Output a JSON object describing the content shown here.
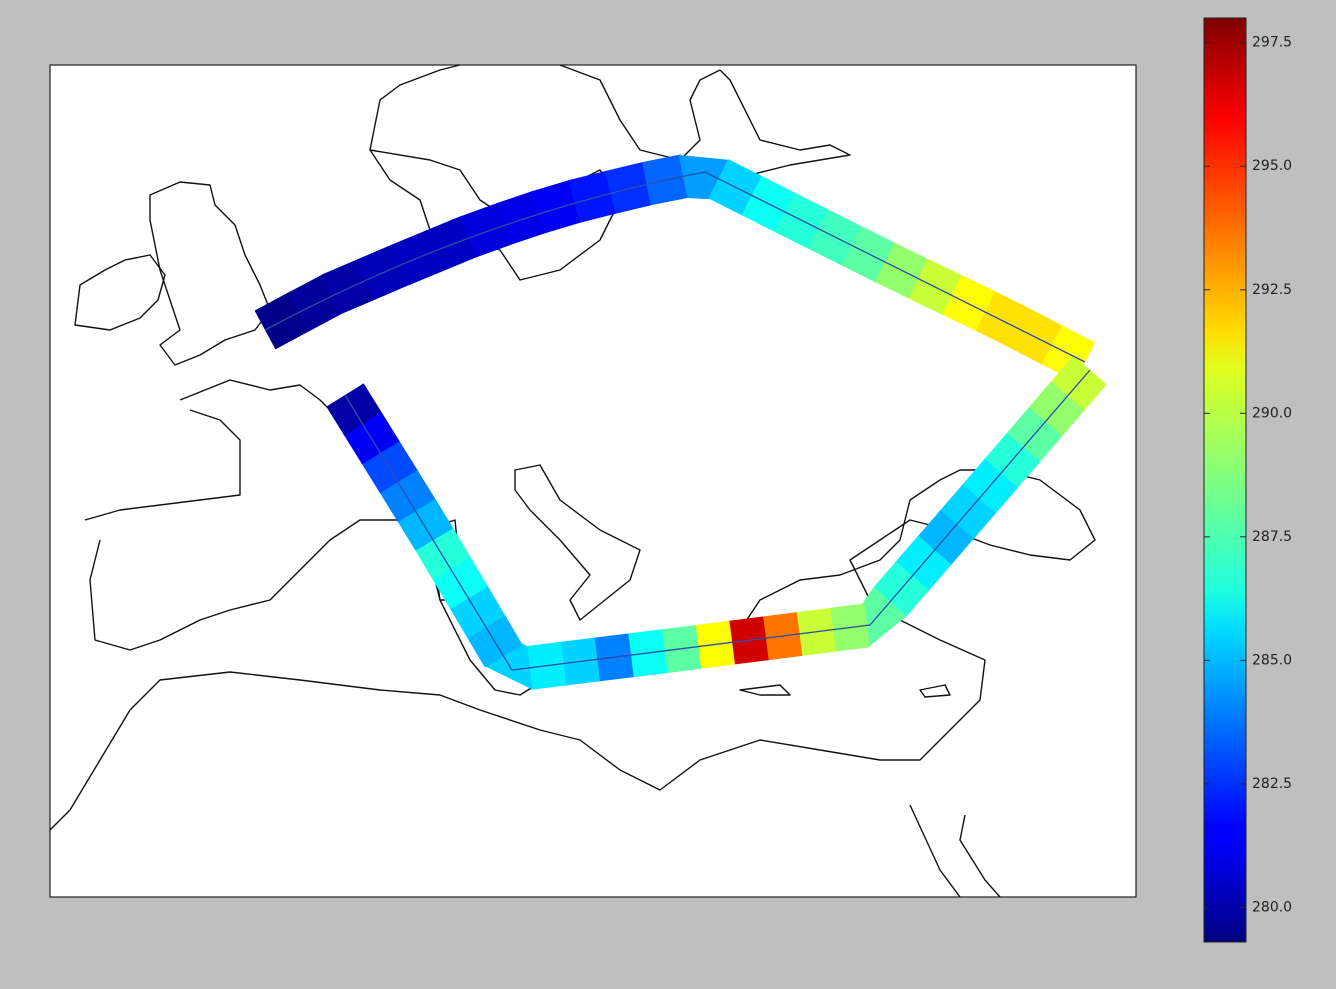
{
  "map": {
    "colormap": "jet",
    "colorbar": {
      "lim": [
        279.3,
        298.0
      ],
      "ticks": [
        {
          "value": 280,
          "label": "280.0"
        },
        {
          "value": 282.5,
          "label": "282.5"
        },
        {
          "value": 285,
          "label": "285.0"
        },
        {
          "value": 287.5,
          "label": "287.5"
        },
        {
          "value": 290,
          "label": "290.0"
        },
        {
          "value": 292.5,
          "label": "292.5"
        },
        {
          "value": 295,
          "label": "295.0"
        },
        {
          "value": 297.5,
          "label": "297.5"
        }
      ]
    },
    "swaths": [
      {
        "values": [
          279.5,
          279.8,
          280,
          280.3,
          280.5,
          280.5,
          281,
          281.2,
          281.5,
          282,
          282.5,
          283.5,
          284.5,
          285.5,
          286.5,
          287,
          287.5,
          288,
          289,
          290,
          291,
          291.5,
          291.5,
          291
        ]
      },
      {
        "values": [
          290,
          289,
          288,
          287,
          286,
          285.5,
          285,
          286,
          287,
          288,
          289,
          290,
          293.5,
          296.5,
          291,
          288,
          286.5,
          284,
          285.5,
          286,
          285.5,
          285,
          285.5,
          286.5,
          287,
          285,
          284,
          283,
          281.5,
          280
        ]
      }
    ]
  }
}
